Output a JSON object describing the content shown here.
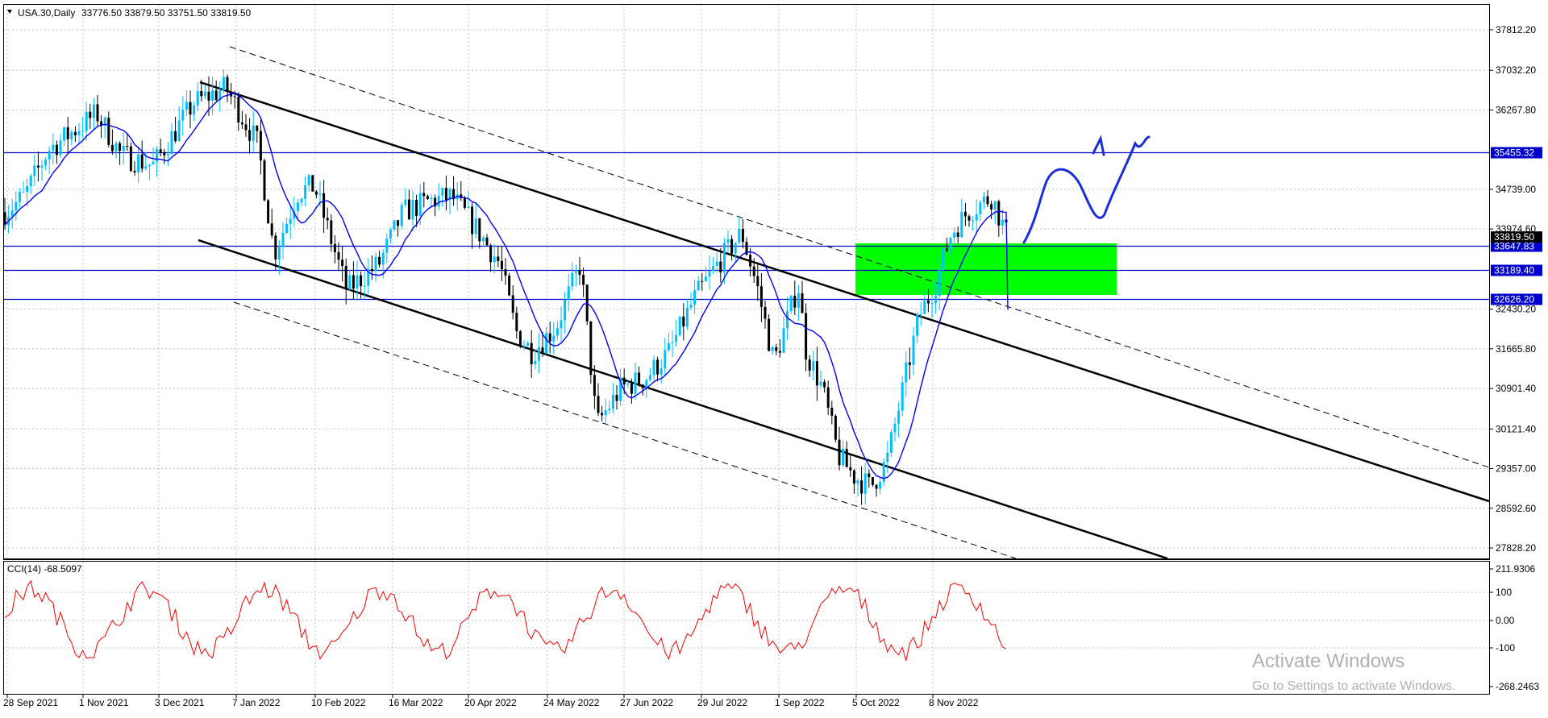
{
  "header": {
    "symbol_label": "USA.30,Daily",
    "ohlc": "33776.50 33879.50 33751.50 33819.50",
    "collapse_icon": "triangle-down-icon"
  },
  "main_axis": {
    "ticks": [
      "37812.20",
      "37032.20",
      "36267.80",
      "34739.00",
      "33974.60",
      "32430.20",
      "31665.80",
      "30901.40",
      "30121.40",
      "29357.00",
      "28592.60",
      "27828.20"
    ]
  },
  "price_labels": [
    {
      "text": "35455.32",
      "color": "#0000cc"
    },
    {
      "text": "33647.83",
      "color": "#0000cc"
    },
    {
      "text": "33189.40",
      "color": "#0000cc"
    },
    {
      "text": "32626.20",
      "color": "#0000cc"
    }
  ],
  "current_price": {
    "text": "33819.50",
    "color": "#000000"
  },
  "cci": {
    "label": "CCI(14) -68.5097",
    "ticks": [
      "211.9306",
      "100",
      "0.00",
      "-100",
      "-268.2463"
    ],
    "line_color": "#ff0000"
  },
  "x_axis": {
    "labels": [
      "28 Sep 2021",
      "1 Nov 2021",
      "3 Dec 2021",
      "7 Jan 2022",
      "10 Feb 2022",
      "16 Mar 2022",
      "20 Apr 2022",
      "24 May 2022",
      "27 Jun 2022",
      "29 Jul 2022",
      "1 Sep 2022",
      "5 Oct 2022",
      "8 Nov 2022"
    ]
  },
  "watermark": {
    "title": "Activate Windows",
    "subtitle": "Go to Settings to activate Windows."
  },
  "colors": {
    "bull_candle": "#00bfff",
    "bear_candle": "#000000",
    "moving_average": "#0000ff",
    "hline": "#0000cc",
    "zone": "#00ff00",
    "channel": "#000000"
  }
}
